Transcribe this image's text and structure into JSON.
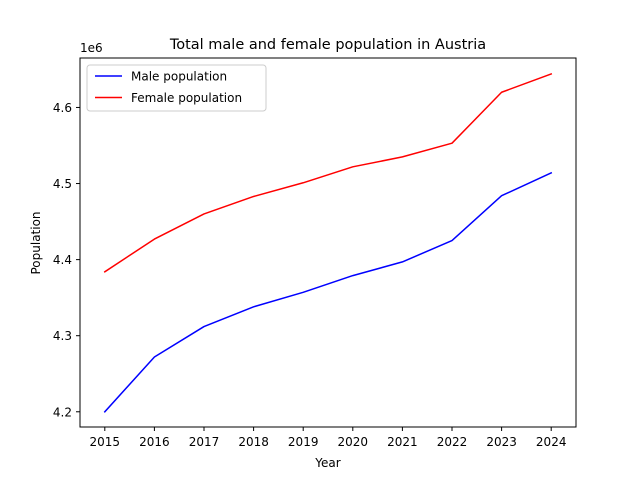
{
  "chart_data": {
    "type": "line",
    "title": "Total male and female population in Austria",
    "xlabel": "Year",
    "ylabel": "Population",
    "y_offset_label": "1e6",
    "x": [
      2015,
      2016,
      2017,
      2018,
      2019,
      2020,
      2021,
      2022,
      2023,
      2024
    ],
    "xlim": [
      2014.5,
      2024.5
    ],
    "ylim": [
      4.18,
      4.665
    ],
    "y_scale_multiplier": 1000000,
    "y_ticks": [
      4.2,
      4.3,
      4.4,
      4.5,
      4.6
    ],
    "y_tick_labels": [
      "4.2",
      "4.3",
      "4.4",
      "4.5",
      "4.6"
    ],
    "x_tick_labels": [
      "2015",
      "2016",
      "2017",
      "2018",
      "2019",
      "2020",
      "2021",
      "2022",
      "2023",
      "2024"
    ],
    "grid": false,
    "legend_position": "top-left",
    "series": [
      {
        "name": "Male population",
        "color": "#0000ff",
        "values": [
          4.2,
          4.272,
          4.312,
          4.338,
          4.357,
          4.379,
          4.397,
          4.425,
          4.484,
          4.514
        ]
      },
      {
        "name": "Female population",
        "color": "#ff0000",
        "values": [
          4.384,
          4.427,
          4.46,
          4.483,
          4.501,
          4.522,
          4.535,
          4.553,
          4.62,
          4.644
        ]
      }
    ]
  }
}
